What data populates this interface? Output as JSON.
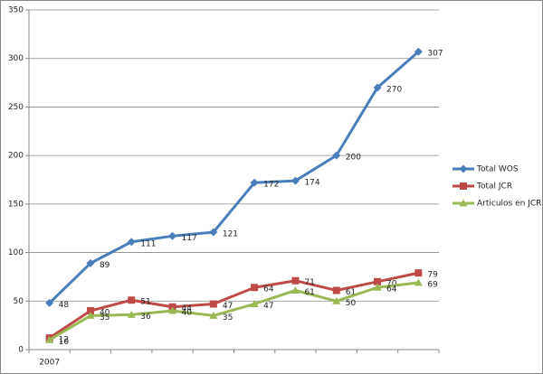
{
  "chart_data": {
    "type": "line",
    "categories": [
      "2007",
      null,
      null,
      null,
      null,
      null,
      null,
      null,
      null,
      null
    ],
    "series": [
      {
        "name": "Total WOS",
        "color": "#4a7ebb",
        "marker": "diamond",
        "values": [
          48,
          89,
          111,
          117,
          121,
          172,
          174,
          200,
          270,
          307
        ]
      },
      {
        "name": "Total JCR",
        "color": "#be4b48",
        "marker": "square",
        "values": [
          12,
          40,
          51,
          44,
          47,
          64,
          71,
          61,
          70,
          79
        ]
      },
      {
        "name": "Articulos en JCR",
        "color": "#98b954",
        "marker": "triangle",
        "values": [
          10,
          35,
          36,
          40,
          35,
          47,
          61,
          50,
          64,
          69
        ]
      }
    ],
    "ylim": [
      0,
      350
    ],
    "yticks": [
      0,
      50,
      100,
      150,
      200,
      250,
      300,
      350
    ],
    "grid": true,
    "legend": "right"
  }
}
